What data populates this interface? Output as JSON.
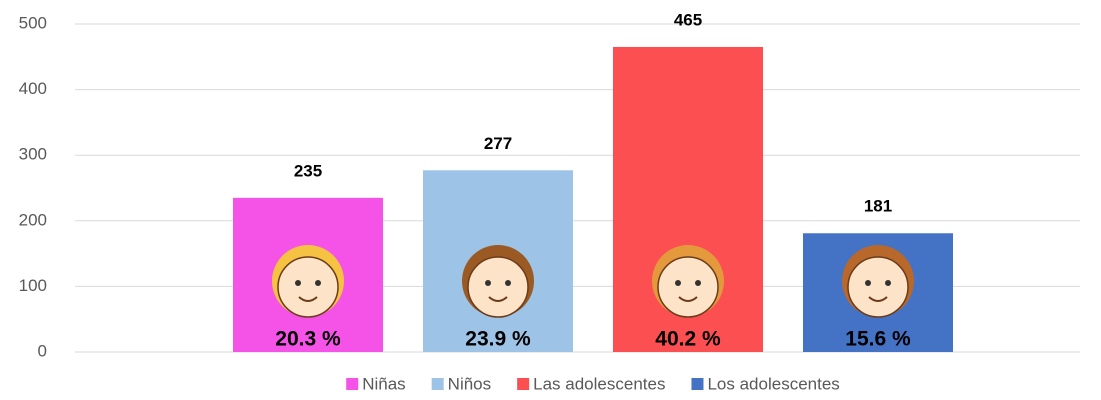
{
  "chart_data": {
    "type": "bar",
    "series": [
      {
        "name": "Niñas",
        "color": "#f553e8",
        "values": [
          235
        ],
        "percent_label": "20.3 %"
      },
      {
        "name": "Niños",
        "color": "#9dc3e6",
        "values": [
          277
        ],
        "percent_label": "23.9 %"
      },
      {
        "name": "Las adolescentes",
        "color": "#fb4f52",
        "values": [
          465
        ],
        "percent_label": "40.2  %"
      },
      {
        "name": "Los adolescentes",
        "color": "#4472c4",
        "values": [
          181
        ],
        "percent_label": "15.6 %"
      }
    ],
    "ylim": [
      0,
      500
    ],
    "yticks": [
      0,
      100,
      200,
      300,
      400,
      500
    ],
    "grid": true,
    "legend": "bottom"
  }
}
